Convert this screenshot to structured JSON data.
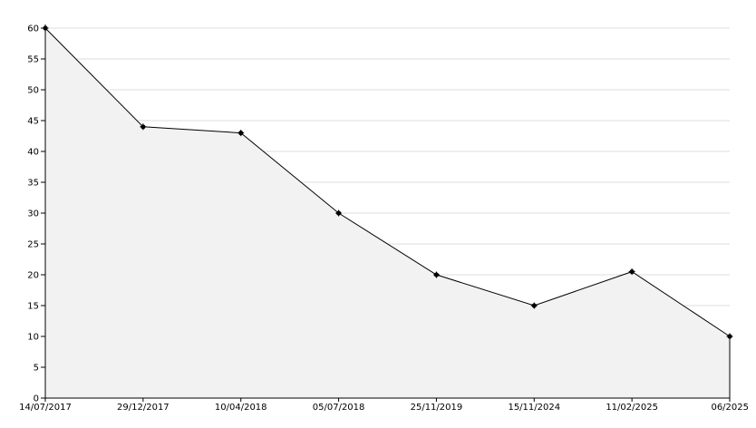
{
  "chart_data": {
    "type": "area",
    "categories": [
      "14/07/2017",
      "29/12/2017",
      "10/04/2018",
      "05/07/2018",
      "25/11/2019",
      "15/11/2024",
      "11/02/2025",
      "06/2025"
    ],
    "series": [
      {
        "values": [
          60,
          44,
          43,
          30,
          20,
          15,
          20.5,
          10
        ]
      }
    ],
    "title": "",
    "xlabel": "",
    "ylabel": "",
    "ylim": [
      0,
      60
    ],
    "yticks": [
      0,
      5,
      10,
      15,
      20,
      25,
      30,
      35,
      40,
      45,
      50,
      55,
      60
    ],
    "grid": true,
    "legend": "none",
    "colors": {
      "line": "#000000",
      "fill": "#f2f2f2",
      "grid": "#dddddd",
      "axis": "#000000",
      "marker": "#000000"
    }
  }
}
